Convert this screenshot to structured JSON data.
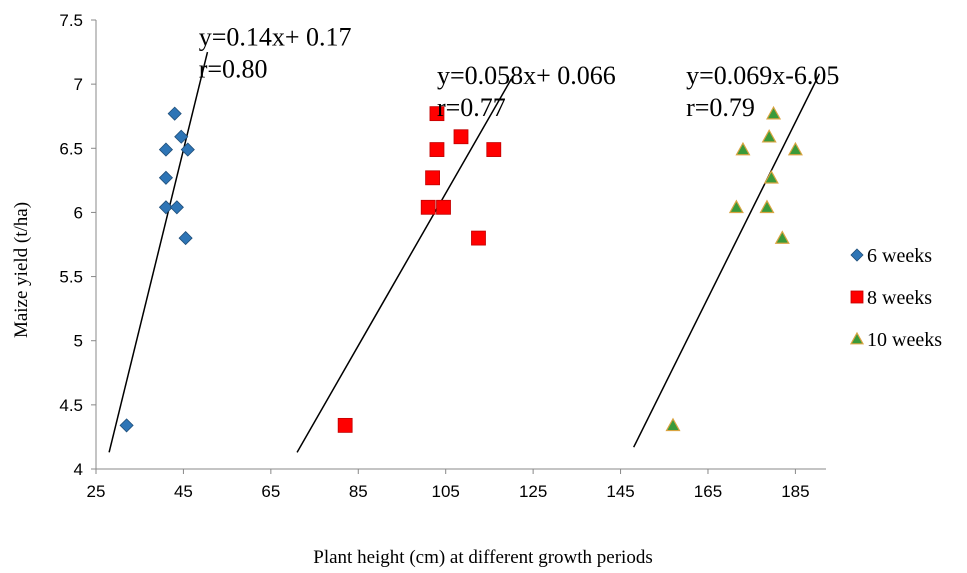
{
  "chart_data": {
    "type": "scatter",
    "title": "",
    "xlabel": "Plant height  (cm) at different growth periods",
    "ylabel": "Maize yield (t/ha)",
    "xlim": [
      25,
      192
    ],
    "ylim": [
      4,
      7.5
    ],
    "x_ticks": [
      25,
      45,
      65,
      85,
      105,
      125,
      145,
      165,
      185
    ],
    "y_ticks": [
      4,
      4.5,
      5,
      5.5,
      6,
      6.5,
      7,
      7.5
    ],
    "y_tick_labels": [
      "4",
      "4.5",
      "5",
      "5.5",
      "6",
      "6.5",
      "7",
      "7.5"
    ],
    "legend_position": "right",
    "series": [
      {
        "name": "6 weeks",
        "marker": "diamond",
        "color": "#2E75B6",
        "points": [
          [
            32,
            4.34
          ],
          [
            41,
            6.04
          ],
          [
            41,
            6.49
          ],
          [
            41,
            6.27
          ],
          [
            43,
            6.77
          ],
          [
            43.5,
            6.04
          ],
          [
            44.5,
            6.59
          ],
          [
            45.5,
            5.8
          ],
          [
            46,
            6.49
          ]
        ]
      },
      {
        "name": "8 weeks",
        "marker": "square",
        "color": "#FF0000",
        "points": [
          [
            82,
            4.34
          ],
          [
            101,
            6.04
          ],
          [
            102,
            6.27
          ],
          [
            103,
            6.49
          ],
          [
            103,
            6.77
          ],
          [
            104.5,
            6.04
          ],
          [
            108.5,
            6.59
          ],
          [
            112.5,
            5.8
          ],
          [
            116,
            6.49
          ]
        ]
      },
      {
        "name": "10 weeks",
        "marker": "triangle",
        "color": "#3A9A3A",
        "points": [
          [
            157,
            4.34
          ],
          [
            171.5,
            6.04
          ],
          [
            173,
            6.49
          ],
          [
            178.5,
            6.04
          ],
          [
            179,
            6.59
          ],
          [
            179.5,
            6.27
          ],
          [
            180,
            6.77
          ],
          [
            182,
            5.8
          ],
          [
            185,
            6.49
          ]
        ]
      }
    ],
    "trendlines": [
      {
        "equation": "y=0.14x+ 0.17",
        "r": "r=0.80",
        "from": [
          28,
          4.13
        ],
        "to": [
          50.5,
          7.25
        ]
      },
      {
        "equation": "y=0.058x+ 0.066",
        "r": "r=0.77",
        "from": [
          71,
          4.13
        ],
        "to": [
          120,
          7.04
        ]
      },
      {
        "equation": "y=0.069x-6.05",
        "r": "r=0.79",
        "from": [
          148,
          4.17
        ],
        "to": [
          190.5,
          7.08
        ]
      }
    ],
    "annotation_anchors": [
      [
        48.5,
        7.3
      ],
      [
        103,
        7.0
      ],
      [
        160,
        7.0
      ]
    ]
  }
}
